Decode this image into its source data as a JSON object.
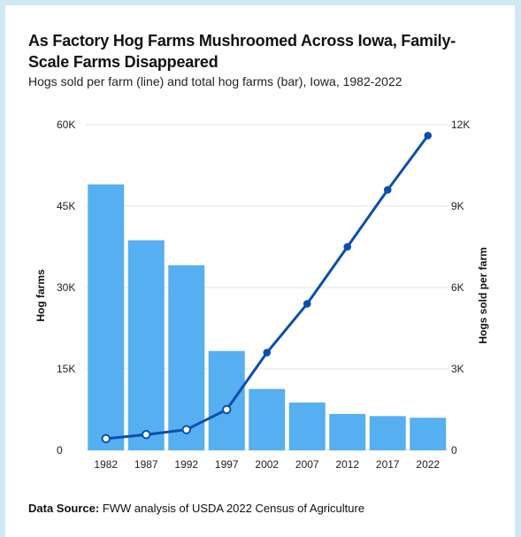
{
  "title": "As Factory Hog Farms Mushroomed Across Iowa, Family-Scale Farms Disappeared",
  "subtitle": "Hogs sold per farm (line) and total hog farms (bar), Iowa, 1982-2022",
  "source": {
    "label": "Data Source:",
    "text": " FWW analysis of USDA 2022 Census of Agriculture"
  },
  "colors": {
    "bar": "#55aff0",
    "line": "#0b4fae",
    "grid": "#e3e3e3",
    "border": "#cdeaf5"
  },
  "chart_data": {
    "type": "bar",
    "categories": [
      "1982",
      "1987",
      "1992",
      "1997",
      "2002",
      "2007",
      "2012",
      "2017",
      "2022"
    ],
    "series": [
      {
        "name": "total hog farms",
        "type": "bar",
        "axis": "left",
        "values": [
          49000,
          38700,
          34100,
          18300,
          11300,
          8800,
          6700,
          6300,
          6000
        ]
      },
      {
        "name": "Hogs sold per farm",
        "type": "line",
        "axis": "right",
        "values": [
          430,
          580,
          760,
          1500,
          3600,
          5400,
          7500,
          9600,
          11600
        ]
      }
    ],
    "ylabel": "Hog farms",
    "ylabel_right": "Hogs sold per farm",
    "ylim": [
      0,
      60000
    ],
    "ylim_right": [
      0,
      12000
    ],
    "yticks": [
      "0",
      "15K",
      "30K",
      "45K",
      "60K"
    ],
    "yticks_right": [
      "0",
      "3K",
      "6K",
      "9K",
      "12K"
    ],
    "grid": true
  }
}
